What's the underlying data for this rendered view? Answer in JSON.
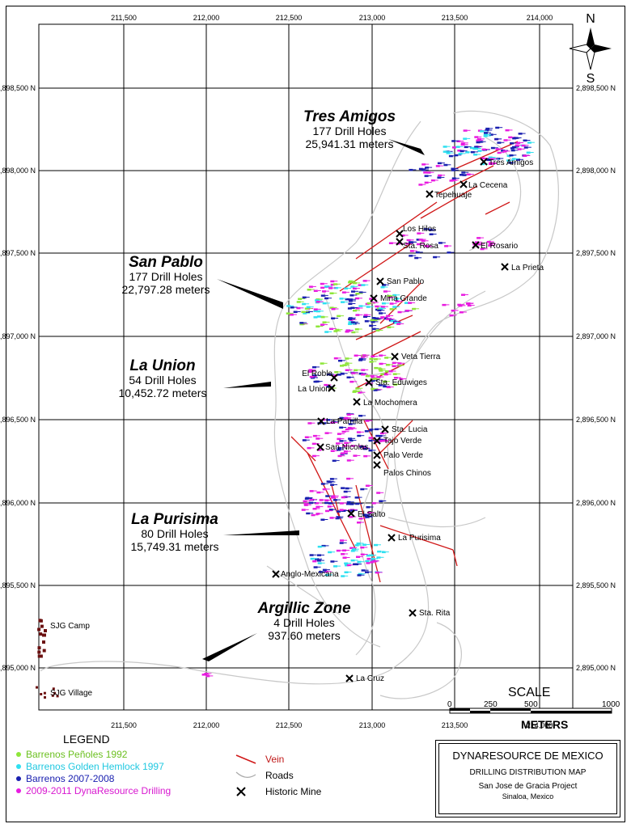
{
  "easting_ticks_top": [
    "211,500",
    "212,000",
    "212,500",
    "213,000",
    "213,500",
    "214,000"
  ],
  "easting_ticks_bottom": [
    "211,500",
    "212,000",
    "212,500",
    "213,000",
    "213,500",
    "214,000"
  ],
  "northing_ticks": [
    "2,898,500 N",
    "2,898,000 N",
    "2,897,500 N",
    "2,897,000 N",
    "2,896,500 N",
    "2,896,000 N",
    "2,895,500 N",
    "2,895,000 N"
  ],
  "compass": {
    "north": "N",
    "south": "S"
  },
  "zones": [
    {
      "name": "Tres Amigos",
      "holes": "177 Drill Holes",
      "meters": "25,941.31 meters"
    },
    {
      "name": "San Pablo",
      "holes": "177 Drill Holes",
      "meters": "22,797.28 meters"
    },
    {
      "name": "La Union",
      "holes": "54 Drill Holes",
      "meters": "10,452.72 meters"
    },
    {
      "name": "La Purisima",
      "holes": "80 Drill Holes",
      "meters": "15,749.31 meters"
    },
    {
      "name": "Argillic Zone",
      "holes": "4 Drill Holes",
      "meters": "937.60 meters"
    }
  ],
  "mines": [
    "Tres Amigos",
    "La Cecena",
    "Tepehuaje",
    "Los Hilos",
    "Sta. Rosa",
    "El Rosario",
    "La Prieta",
    "San Pablo",
    "Mina Grande",
    "Veta Tierra",
    "El Roble",
    "Sta. Eduwiges",
    "La Union",
    "La Mochomera",
    "La Parrilla",
    "Sta. Lucia",
    "Tajo Verde",
    "San Nicolas",
    "Palo Verde",
    "Palos Chinos",
    "El Salto",
    "La Purisima",
    "Anglo-Mexicana",
    "Sta. Rita",
    "La Cruz"
  ],
  "camps": [
    "SJG Camp",
    "SJG Village"
  ],
  "legend": {
    "title": "LEGEND",
    "items": [
      {
        "label": "Barrenos Peñoles 1992",
        "color": "#8ee63a"
      },
      {
        "label": "Barrenos Golden Hemlock 1997",
        "color": "#2fe0f0"
      },
      {
        "label": "Barrenos 2007-2008",
        "color": "#1a20b0"
      },
      {
        "label": "2009-2011  DynaResource Drilling",
        "color": "#e81ce0"
      }
    ],
    "symbols": [
      {
        "label": "Vein",
        "color": "#c01818"
      },
      {
        "label": "Roads"
      },
      {
        "label": "Historic Mine"
      }
    ]
  },
  "scale": {
    "title": "SCALE",
    "labels": [
      "0",
      "250",
      "500",
      "1000"
    ],
    "units": "METERS"
  },
  "title_block": {
    "company": "DYNARESOURCE DE MEXICO",
    "map": "DRILLING DISTRIBUTION MAP",
    "project": "San Jose de Gracia Project",
    "region": "Sinaloa, Mexico"
  },
  "colors": {
    "vein": "#d01818",
    "road": "#c8c8c8",
    "penoles": "#8ee63a",
    "hemlock": "#2fe0f0",
    "b2007": "#1a20b0",
    "dyna": "#e81ce0",
    "camp": "#6b1010"
  }
}
